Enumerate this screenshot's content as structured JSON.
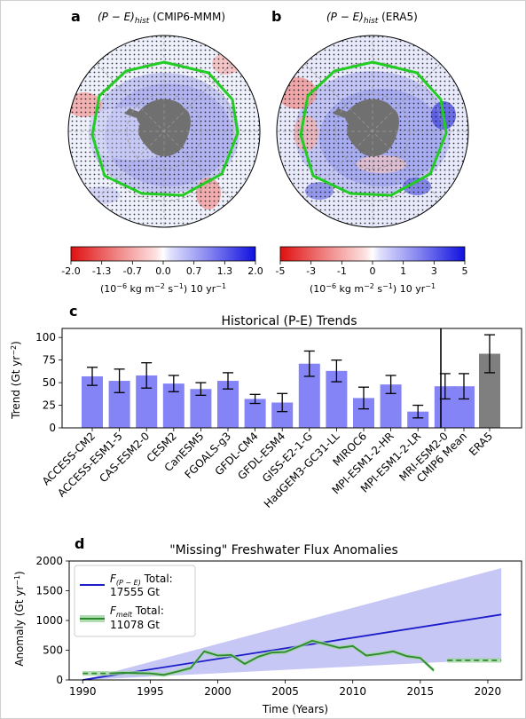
{
  "panels": {
    "a": {
      "letter": "a",
      "title_main": "(P − E)",
      "title_sub": "hist",
      "title_tail": " (CMIP6-MMM)",
      "colorbar": {
        "ticks": [
          "-2.0",
          "-1.3",
          "-0.7",
          "0.0",
          "0.7",
          "1.3",
          "2.0"
        ],
        "label_a": "(10",
        "label_b": "−6",
        "label_c": " kg m",
        "label_d": "−2",
        "label_e": " s",
        "label_f": "−1",
        "label_g": ") 10 yr",
        "label_h": "−1"
      }
    },
    "b": {
      "letter": "b",
      "title_main": "(P − E)",
      "title_sub": "hist",
      "title_tail": " (ERA5)",
      "colorbar": {
        "ticks": [
          "-5",
          "-3",
          "-1",
          "0",
          "1",
          "3",
          "5"
        ],
        "label_a": "(10",
        "label_b": "−6",
        "label_c": " kg m",
        "label_d": "−2",
        "label_e": " s",
        "label_f": "−1",
        "label_g": ") 10 yr",
        "label_h": "−1"
      }
    }
  },
  "colors": {
    "bar_model": "#8484f7",
    "bar_era5": "#7f7f7f",
    "line_pe": "#1c1cc8",
    "band_pe": "#bdbdf5",
    "line_melt": "#2c8a2c",
    "band_melt": "#9fd49f",
    "circle_green": "#22cc22",
    "land": "#707070"
  },
  "chart_data": [
    {
      "panel": "c",
      "type": "bar",
      "title": "Historical (P-E) Trends",
      "ylabel": "Trend (Gt yr",
      "ylabel_sup": "−2",
      "ylabel_end": ")",
      "ylim": [
        0,
        110
      ],
      "yticks": [
        0,
        25,
        50,
        75,
        100
      ],
      "categories": [
        "ACCESS-CM2",
        "ACCESS-ESM1-5",
        "CAS-ESM2-0",
        "CESM2",
        "CanESM5",
        "FGOALS-g3",
        "GFDL-CM4",
        "GFDL-ESM4",
        "GISS-E2-1-G",
        "HadGEM3-GC31-LL",
        "MIROC6",
        "MPI-ESM1-2-HR",
        "MPI-ESM1-2-LR",
        "MRI-ESM2-0"
      ],
      "values": [
        57,
        52,
        58,
        49,
        43,
        52,
        32,
        28,
        71,
        63,
        33,
        48,
        18,
        46
      ],
      "errors": [
        10,
        13,
        14,
        9,
        7,
        9,
        5,
        10,
        14,
        12,
        12,
        10,
        7,
        14
      ],
      "summary_categories": [
        "CMIP6 Mean",
        "ERA5"
      ],
      "summary_values": [
        46,
        82
      ],
      "summary_errors": [
        14,
        21
      ]
    },
    {
      "panel": "d",
      "type": "line",
      "title": "\"Missing\" Freshwater Flux Anomalies",
      "xlabel": "Time (Years)",
      "ylabel": "Anomaly (Gt yr",
      "ylabel_sup": "−1",
      "ylabel_end": ")",
      "xlim": [
        1989,
        2022.5
      ],
      "ylim": [
        0,
        2000
      ],
      "xticks": [
        1990,
        1995,
        2000,
        2005,
        2010,
        2015,
        2020
      ],
      "yticks": [
        0,
        500,
        1000,
        1500,
        2000
      ],
      "series": [
        {
          "name_main": "F",
          "name_sub": "(P − E)",
          "name_tail": " Total:",
          "total": "17555 Gt",
          "x": [
            1990,
            2021
          ],
          "y": [
            0,
            1100
          ],
          "band_low": [
            0,
            350
          ],
          "band_high": [
            0,
            1880
          ]
        },
        {
          "name_main": "F",
          "name_sub": "melt",
          "name_tail": " Total:",
          "total": "11078 Gt",
          "x": [
            1992,
            1993,
            1994,
            1995,
            1996,
            1997,
            1998,
            1999,
            2000,
            2001,
            2002,
            2003,
            2004,
            2005,
            2006,
            2007,
            2008,
            2009,
            2010,
            2011,
            2012,
            2013,
            2014,
            2015,
            2016
          ],
          "y": [
            110,
            120,
            115,
            110,
            85,
            140,
            200,
            480,
            410,
            420,
            270,
            390,
            460,
            470,
            560,
            660,
            600,
            540,
            570,
            410,
            440,
            480,
            400,
            370,
            160
          ],
          "dashed_before": {
            "x": [
              1990,
              1992
            ],
            "y": [
              110,
              110
            ]
          },
          "dashed_after": {
            "x": [
              2017,
              2021
            ],
            "y": [
              330,
              330
            ]
          }
        }
      ]
    }
  ]
}
